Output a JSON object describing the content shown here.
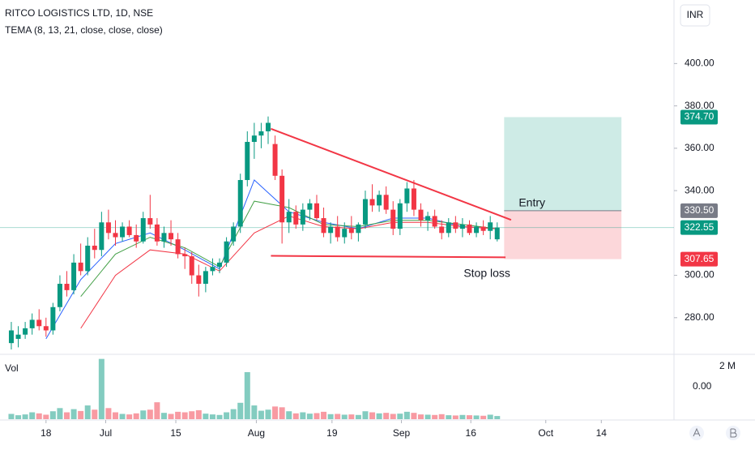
{
  "chart_data": {
    "type": "candlestick",
    "title": "RITCO LOGISTICS LTD, 1D, NSE",
    "indicator": "TEMA (8, 13, 21, close, close, close)",
    "currency": "INR",
    "up_color": "#089981",
    "down_color": "#f23645",
    "open": [
      268,
      270,
      272,
      275,
      279,
      276,
      274,
      285,
      296,
      293,
      306,
      302,
      314,
      312,
      325,
      320,
      318,
      323,
      319,
      316,
      327,
      324,
      316,
      320,
      317,
      310,
      309,
      300,
      296,
      302,
      304,
      306,
      316,
      323,
      345,
      363,
      366,
      368,
      362,
      347,
      325,
      330,
      324,
      331,
      334,
      327,
      320,
      323,
      318,
      322,
      320,
      324,
      336,
      333,
      338,
      331,
      322,
      334,
      341,
      331,
      326,
      328,
      323,
      320,
      325,
      322,
      324,
      320,
      323,
      321,
      317
    ],
    "high": [
      278,
      276,
      278,
      282,
      284,
      280,
      287,
      300,
      302,
      310,
      315,
      318,
      322,
      330,
      331,
      326,
      325,
      326,
      324,
      330,
      338,
      327,
      323,
      326,
      320,
      313,
      311,
      305,
      304,
      308,
      308,
      318,
      325,
      348,
      368,
      372,
      372,
      375,
      366,
      350,
      336,
      333,
      334,
      336,
      338,
      332,
      325,
      328,
      325,
      328,
      325,
      340,
      343,
      340,
      342,
      335,
      336,
      344,
      345,
      334,
      330,
      331,
      326,
      327,
      328,
      327,
      326,
      325,
      326,
      328,
      325
    ],
    "low": [
      265,
      266,
      270,
      272,
      274,
      271,
      272,
      283,
      290,
      291,
      300,
      300,
      308,
      309,
      317,
      314,
      316,
      318,
      313,
      315,
      322,
      314,
      313,
      314,
      308,
      303,
      296,
      290,
      292,
      300,
      301,
      304,
      314,
      320,
      342,
      355,
      360,
      362,
      345,
      315,
      320,
      322,
      321,
      326,
      326,
      318,
      315,
      316,
      315,
      317,
      316,
      322,
      330,
      330,
      329,
      319,
      319,
      330,
      328,
      323,
      321,
      322,
      317,
      318,
      320,
      318,
      319,
      318,
      319,
      317,
      316
    ],
    "close": [
      274,
      272,
      275,
      279,
      276,
      274,
      285,
      296,
      293,
      306,
      302,
      314,
      312,
      325,
      320,
      318,
      323,
      319,
      316,
      327,
      324,
      316,
      320,
      317,
      310,
      309,
      300,
      296,
      302,
      304,
      306,
      316,
      323,
      345,
      363,
      366,
      368,
      372,
      347,
      325,
      330,
      324,
      331,
      334,
      327,
      320,
      323,
      318,
      322,
      320,
      324,
      336,
      333,
      338,
      331,
      322,
      334,
      341,
      331,
      326,
      328,
      323,
      320,
      325,
      322,
      324,
      320,
      323,
      321,
      325,
      322.55
    ],
    "xlim": [
      -1.63,
      95.47
    ],
    "xticks": [
      {
        "value": 5,
        "label": "18"
      },
      {
        "value": 13.6,
        "label": "Jul"
      },
      {
        "value": 23.7,
        "label": "15"
      },
      {
        "value": 35.3,
        "label": "Aug"
      },
      {
        "value": 46.2,
        "label": "19"
      },
      {
        "value": 56.2,
        "label": "Sep"
      },
      {
        "value": 66.2,
        "label": "16"
      },
      {
        "value": 77,
        "label": "Oct"
      },
      {
        "value": 85,
        "label": "14"
      }
    ],
    "ylim": [
      262.7,
      430
    ],
    "yticks": [
      {
        "value": 280,
        "label": "280.00"
      },
      {
        "value": 300,
        "label": "300.00"
      },
      {
        "value": 340,
        "label": "340.00"
      },
      {
        "value": 360,
        "label": "360.00"
      },
      {
        "value": 380,
        "label": "380.00"
      },
      {
        "value": 400,
        "label": "400.00"
      }
    ],
    "tema": {
      "x": [
        0,
        5,
        10,
        15,
        20,
        25,
        30,
        35,
        40,
        45,
        50,
        55,
        60,
        65,
        70
      ],
      "series": [
        {
          "color": "#2962ff",
          "values": [
            null,
            270,
            298,
            315,
            320,
            312,
            303,
            345,
            330,
            325,
            322,
            327,
            327,
            323,
            322
          ]
        },
        {
          "color": "#43a047",
          "values": [
            null,
            null,
            290,
            310,
            318,
            313,
            304,
            335,
            332,
            324,
            323,
            326,
            326,
            324,
            322
          ]
        },
        {
          "color": "#f23645",
          "values": [
            null,
            null,
            275,
            300,
            312,
            310,
            302,
            320,
            328,
            323,
            322,
            325,
            325,
            323,
            322
          ]
        }
      ]
    },
    "drawings": [
      {
        "color": "#f23645",
        "x": [
          37.4,
          72
        ],
        "values": [
          369.2,
          326.2
        ]
      },
      {
        "color": "#f23645",
        "x": [
          37.4,
          71.2
        ],
        "values": [
          309.2,
          308.5
        ]
      }
    ],
    "position": {
      "x": [
        71,
        87.9
      ],
      "target": 374.7,
      "entry": 330.5,
      "stop": 307.65,
      "target_label": "374.70",
      "entry_label": "330.50",
      "stop_label": "307.65",
      "entry_text": "Entry",
      "stop_text": "Stop loss"
    },
    "volume": {
      "label": "Vol",
      "readout": "0.00",
      "ylim": [
        0,
        2300000
      ],
      "yticks": [
        {
          "value": 2000000,
          "label": "2 M"
        }
      ],
      "values": [
        200000,
        150000,
        180000,
        260000,
        220000,
        170000,
        300000,
        420000,
        260000,
        380000,
        310000,
        520000,
        360000,
        2280000,
        420000,
        260000,
        200000,
        180000,
        220000,
        330000,
        360000,
        640000,
        240000,
        200000,
        280000,
        260000,
        300000,
        340000,
        210000,
        180000,
        160000,
        260000,
        380000,
        620000,
        1780000,
        520000,
        320000,
        360000,
        480000,
        450000,
        300000,
        220000,
        260000,
        210000,
        230000,
        280000,
        190000,
        200000,
        170000,
        180000,
        160000,
        300000,
        260000,
        220000,
        240000,
        200000,
        210000,
        280000,
        240000,
        180000,
        170000,
        160000,
        190000,
        150000,
        140000,
        160000,
        150000,
        140000,
        130000,
        170000,
        120000
      ]
    }
  }
}
